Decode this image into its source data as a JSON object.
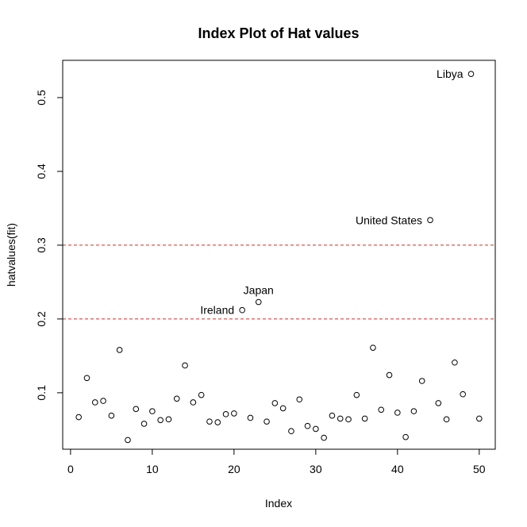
{
  "chart_data": {
    "type": "scatter",
    "title": "Index Plot of Hat values",
    "xlabel": "Index",
    "ylabel": "hatvalues(fit)",
    "xlim": [
      -0.96,
      51.96
    ],
    "ylim": [
      0.0235,
      0.5505
    ],
    "xticks": [
      0,
      10,
      20,
      30,
      40,
      50
    ],
    "yticks": [
      0.1,
      0.2,
      0.3,
      0.4,
      0.5
    ],
    "hlines": [
      {
        "y": 0.2,
        "color": "#d62728",
        "style": "dashed"
      },
      {
        "y": 0.3,
        "color": "#d62728",
        "style": "dashed"
      }
    ],
    "series": [
      {
        "x": [
          1,
          2,
          3,
          4,
          5,
          6,
          7,
          8,
          9,
          10,
          11,
          12,
          13,
          14,
          15,
          16,
          17,
          18,
          19,
          20,
          21,
          22,
          23,
          24,
          25,
          26,
          27,
          28,
          29,
          30,
          31,
          32,
          33,
          34,
          35,
          36,
          37,
          38,
          39,
          40,
          41,
          42,
          43,
          44,
          45,
          46,
          47,
          48,
          49,
          50
        ],
        "y": [
          0.067,
          0.12,
          0.087,
          0.089,
          0.069,
          0.158,
          0.036,
          0.078,
          0.058,
          0.075,
          0.063,
          0.064,
          0.092,
          0.137,
          0.087,
          0.097,
          0.061,
          0.06,
          0.071,
          0.072,
          0.212,
          0.066,
          0.223,
          0.061,
          0.086,
          0.079,
          0.048,
          0.091,
          0.055,
          0.051,
          0.039,
          0.069,
          0.065,
          0.064,
          0.097,
          0.065,
          0.161,
          0.077,
          0.124,
          0.073,
          0.04,
          0.075,
          0.116,
          0.334,
          0.086,
          0.064,
          0.141,
          0.098,
          0.532,
          0.065
        ]
      }
    ],
    "annotations": [
      {
        "text": "Libya",
        "x": 49,
        "y": 0.532,
        "pos": "left"
      },
      {
        "text": "United States",
        "x": 44,
        "y": 0.334,
        "pos": "left"
      },
      {
        "text": "Japan",
        "x": 23,
        "y": 0.223,
        "pos": "above"
      },
      {
        "text": "Ireland",
        "x": 21,
        "y": 0.212,
        "pos": "left"
      }
    ]
  }
}
